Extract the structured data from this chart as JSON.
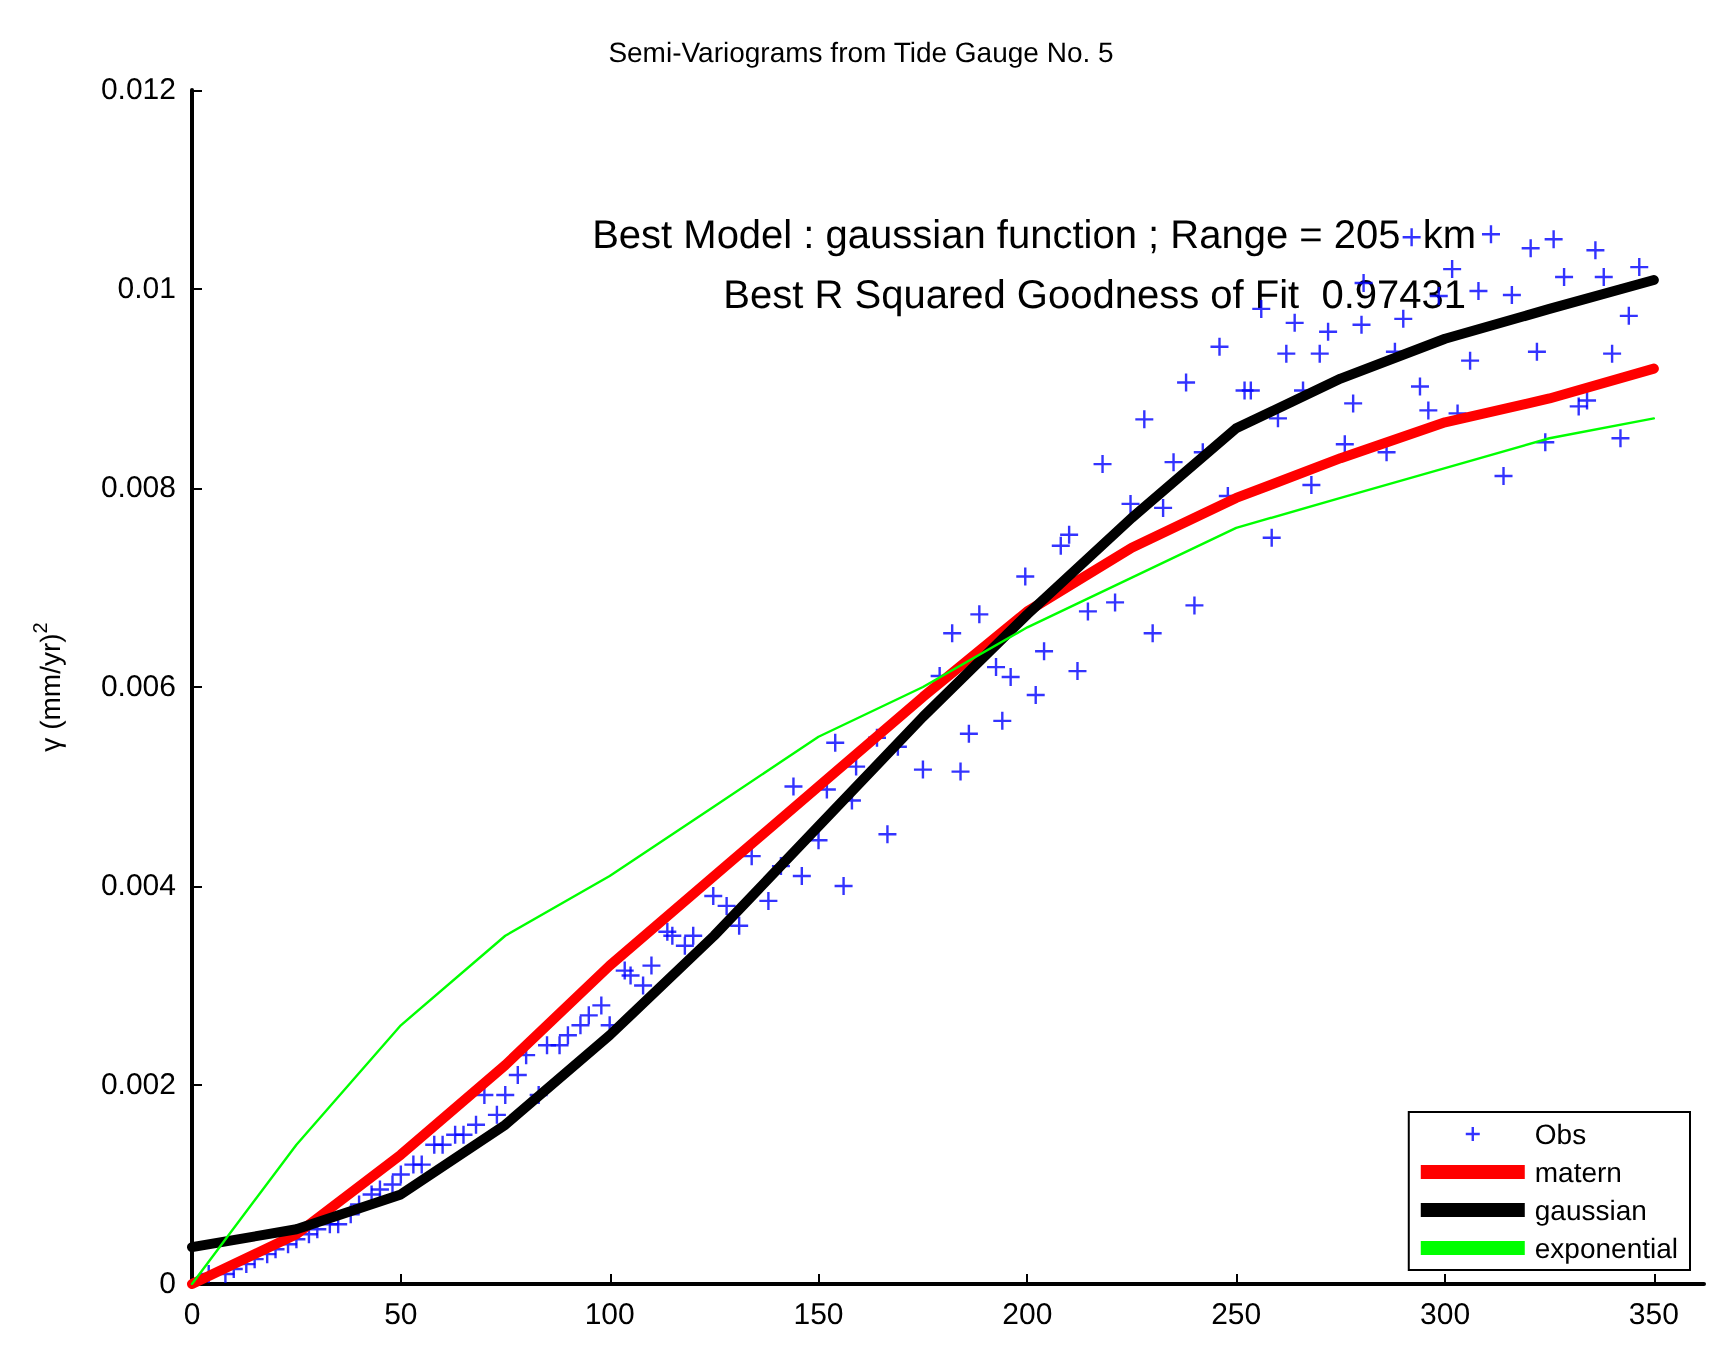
{
  "chart_data": {
    "type": "scatter",
    "title": "Semi-Variograms from Tide Gauge No. 5",
    "ylabel": "γ (mm/yr)$^{2}$",
    "annotations": [
      "Best Model : gaussian function ; Range = 205  km",
      "Best R Squared Goodness of Fit  0.97431"
    ],
    "xlim": [
      0,
      362
    ],
    "xticks": [
      0,
      50,
      100,
      150,
      200,
      250,
      300,
      350
    ],
    "ylim": [
      0,
      0.012
    ],
    "yticks": [
      0,
      0.002,
      0.004,
      0.006,
      0.008,
      0.01,
      0.012
    ],
    "grid": false,
    "legend": "bottom right",
    "series": [
      {
        "name": "Obs",
        "type": "scatter",
        "marker": "cross",
        "color": "#0000ff",
        "x": [
          4,
          8,
          10,
          13,
          15,
          18,
          20,
          23,
          25,
          28,
          30,
          33,
          35,
          38,
          40,
          43,
          45,
          48,
          50,
          53,
          55,
          58,
          60,
          63,
          65,
          68,
          70,
          73,
          75,
          78,
          80,
          83,
          85,
          88,
          90,
          93,
          95,
          98,
          100,
          103.6,
          105,
          108,
          110,
          113.8,
          115,
          118,
          120,
          124.8,
          128,
          131,
          134,
          138,
          141,
          144,
          146,
          150,
          152,
          154,
          156,
          158,
          159,
          164,
          166.5,
          169,
          175,
          179,
          182,
          184,
          186,
          188.5,
          192.5,
          194,
          196,
          199.5,
          202,
          204,
          208,
          210,
          212,
          214.5,
          218,
          221,
          224.7,
          228,
          230,
          232.5,
          235,
          238,
          240,
          242,
          246,
          248,
          252,
          253.5,
          256,
          258.5,
          260,
          262,
          264,
          266,
          268,
          270,
          272,
          276,
          278,
          280,
          280.5,
          286,
          288,
          290,
          292,
          294,
          296,
          298.5,
          301.7,
          303,
          306,
          308,
          311,
          314,
          316,
          320.5,
          322,
          324,
          326,
          328.5,
          332,
          334,
          336,
          338,
          340,
          342,
          344,
          346.5
        ],
        "values": [
          0.0001,
          0.0001,
          0.00015,
          0.0002,
          0.00025,
          0.0003,
          0.00035,
          0.0004,
          0.00045,
          0.0005,
          0.00055,
          0.0006,
          0.0006,
          0.0007,
          0.0008,
          0.0009,
          0.00095,
          0.001,
          0.0011,
          0.0012,
          0.0012,
          0.0014,
          0.0014,
          0.0015,
          0.0015,
          0.0016,
          0.0019,
          0.0017,
          0.0019,
          0.0021,
          0.0023,
          0.0019,
          0.0024,
          0.0024,
          0.0025,
          0.0026,
          0.0027,
          0.0028,
          0.0026,
          0.00315,
          0.0031,
          0.003,
          0.0032,
          0.00354,
          0.0035,
          0.0034,
          0.0035,
          0.0039,
          0.0038,
          0.0036,
          0.0043,
          0.00385,
          0.0042,
          0.005,
          0.0041,
          0.00446,
          0.00497,
          0.00544,
          0.004,
          0.00486,
          0.0052,
          0.00549,
          0.00452,
          0.0054,
          0.00517,
          0.00611,
          0.00654,
          0.00515,
          0.00553,
          0.00673,
          0.0062,
          0.00566,
          0.0061,
          0.00711,
          0.00592,
          0.00636,
          0.00742,
          0.00753,
          0.00616,
          0.00676,
          0.00824,
          0.00685,
          0.00784,
          0.00869,
          0.00654,
          0.0078,
          0.00826,
          0.00906,
          0.00682,
          0.00836,
          0.00942,
          0.00792,
          0.00898,
          0.00898,
          0.0098,
          0.0075,
          0.0087,
          0.00935,
          0.00966,
          0.00898,
          0.00803,
          0.00935,
          0.00957,
          0.00844,
          0.00885,
          0.00964,
          0.01006,
          0.00836,
          0.00937,
          0.0097,
          0.01052,
          0.00902,
          0.00878,
          0.00993,
          0.0102,
          0.00875,
          0.00928,
          0.00998,
          0.01055,
          0.00812,
          0.00994,
          0.01041,
          0.00937,
          0.00846,
          0.0105,
          0.01012,
          0.00882,
          0.00888,
          0.01039,
          0.01012,
          0.00935,
          0.0085,
          0.00973,
          0.01022
        ]
      },
      {
        "name": "matern",
        "type": "line",
        "color": "#ff0000",
        "x": [
          0,
          25,
          50,
          75,
          100,
          125,
          150,
          175,
          200,
          225,
          250,
          275,
          300,
          325,
          350
        ],
        "values": [
          0,
          0.0005,
          0.0013,
          0.0022,
          0.0032,
          0.0041,
          0.005,
          0.0059,
          0.00676,
          0.0074,
          0.0079,
          0.0083,
          0.00866,
          0.0089,
          0.0092
        ]
      },
      {
        "name": "gaussian",
        "type": "line",
        "color": "#000000",
        "x": [
          0,
          25,
          50,
          75,
          100,
          125,
          150,
          175,
          200,
          225,
          250,
          275,
          300,
          325,
          350
        ],
        "values": [
          0.00037,
          0.00055,
          0.0009,
          0.0016,
          0.0025,
          0.0035,
          0.0046,
          0.0057,
          0.00673,
          0.0077,
          0.0086,
          0.0091,
          0.0095,
          0.0098,
          0.01009
        ]
      },
      {
        "name": "exponential",
        "type": "line",
        "color": "#00ff00",
        "x": [
          0,
          25,
          50,
          75,
          100,
          125,
          150,
          175,
          200,
          225,
          250,
          275,
          300,
          325,
          350
        ],
        "values": [
          0,
          0.0014,
          0.0026,
          0.0035,
          0.0041,
          0.0048,
          0.0055,
          0.006,
          0.0066,
          0.0071,
          0.0076,
          0.0079,
          0.0082,
          0.0085,
          0.0087
        ]
      }
    ]
  }
}
